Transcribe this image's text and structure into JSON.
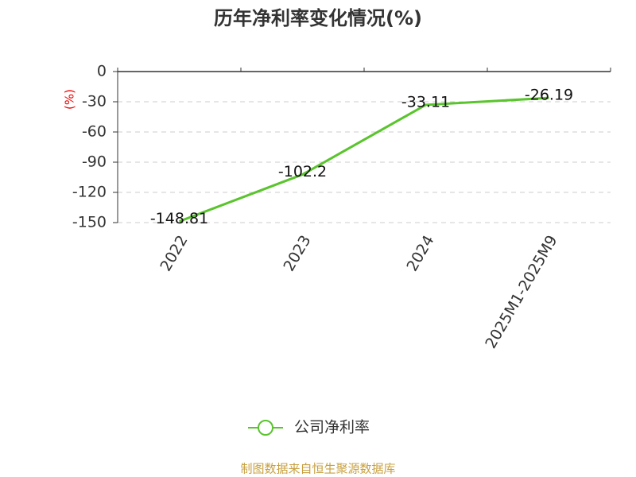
{
  "chart_data": {
    "type": "line",
    "title": "历年净利率变化情况(%)",
    "y_label": "(%)",
    "categories": [
      "2022",
      "2023",
      "2024",
      "2025M1-2025M9"
    ],
    "series": [
      {
        "name": "公司净利率",
        "color": "#5ac42d",
        "values": [
          -148.81,
          -102.2,
          -33.11,
          -26.19
        ]
      }
    ],
    "ylim": [
      -150,
      0
    ],
    "yticks": [
      0,
      -30,
      -60,
      -90,
      -120,
      -150
    ],
    "grid": true,
    "legend": "bottom",
    "source": "制图数据来自恒生聚源数据库"
  }
}
